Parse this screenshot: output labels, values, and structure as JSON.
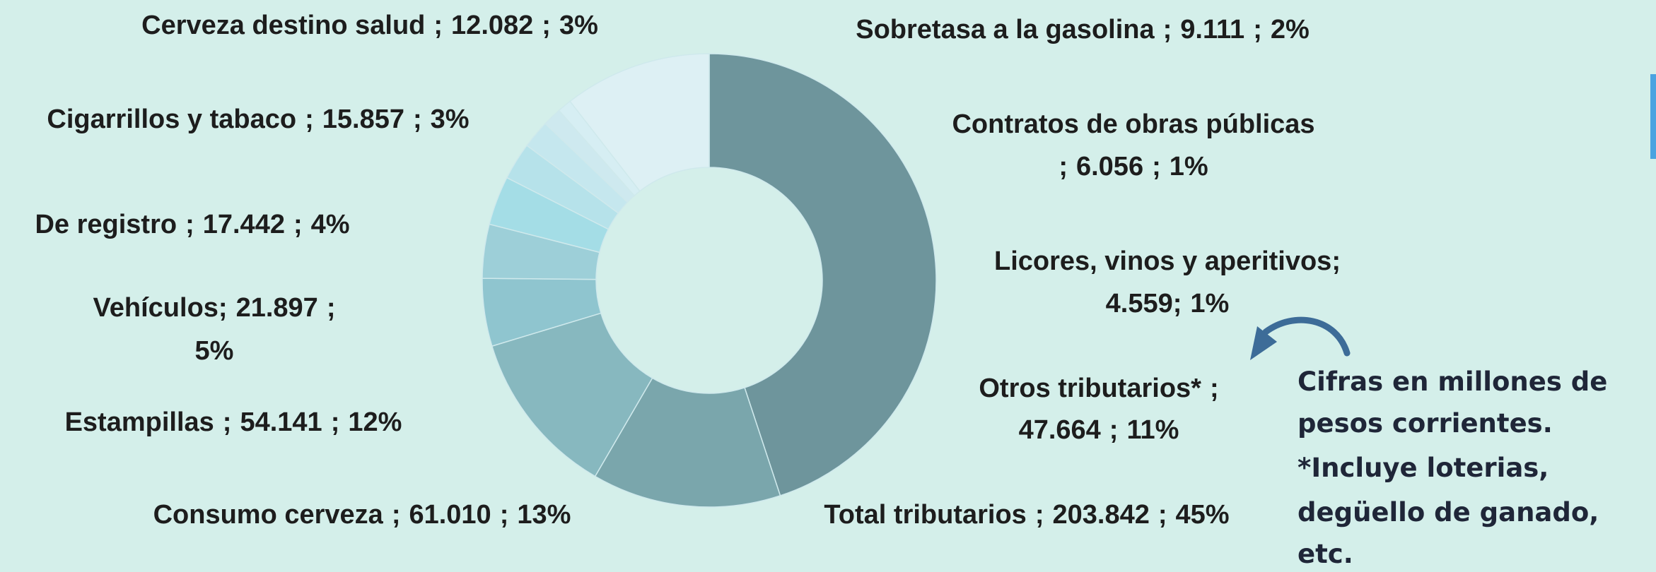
{
  "chart_data": {
    "type": "donut",
    "separator": ";",
    "categories": [
      "Total tributarios",
      "Consumo cerveza",
      "Estampillas",
      "Vehículos",
      "De registro",
      "Cigarrillos y tabaco",
      "Cerveza destino salud",
      "Sobretasa a la gasolina",
      "Contratos de obras públicas",
      "Licores, vinos y aperitivos",
      "Otros tributarios*"
    ],
    "values": [
      203842,
      61010,
      54141,
      21897,
      17442,
      15857,
      12082,
      9111,
      6056,
      4559,
      47664
    ],
    "value_labels": [
      "203.842",
      "61.010",
      "54.141",
      "21.897",
      "17.442",
      "15.857",
      "12.082",
      "9.111",
      "6.056",
      "4.559",
      "47.664"
    ],
    "percents": [
      45,
      13,
      12,
      5,
      4,
      3,
      3,
      2,
      1,
      1,
      11
    ],
    "percent_labels": [
      "45%",
      "13%",
      "12%",
      "5%",
      "4%",
      "3%",
      "3%",
      "2%",
      "1%",
      "1%",
      "11%"
    ],
    "colors": [
      "#6e959c",
      "#7aa6ac",
      "#87b8bf",
      "#8fc5cf",
      "#9dcfd8",
      "#a4dde6",
      "#b6e2ea",
      "#c5e7ee",
      "#cee9ef",
      "#d6eef3",
      "#ddf0f4"
    ],
    "note": [
      "Cifras en millones de",
      "pesos corrientes.",
      "*Incluye loterias,",
      "degüello de ganado,",
      "etc."
    ]
  }
}
